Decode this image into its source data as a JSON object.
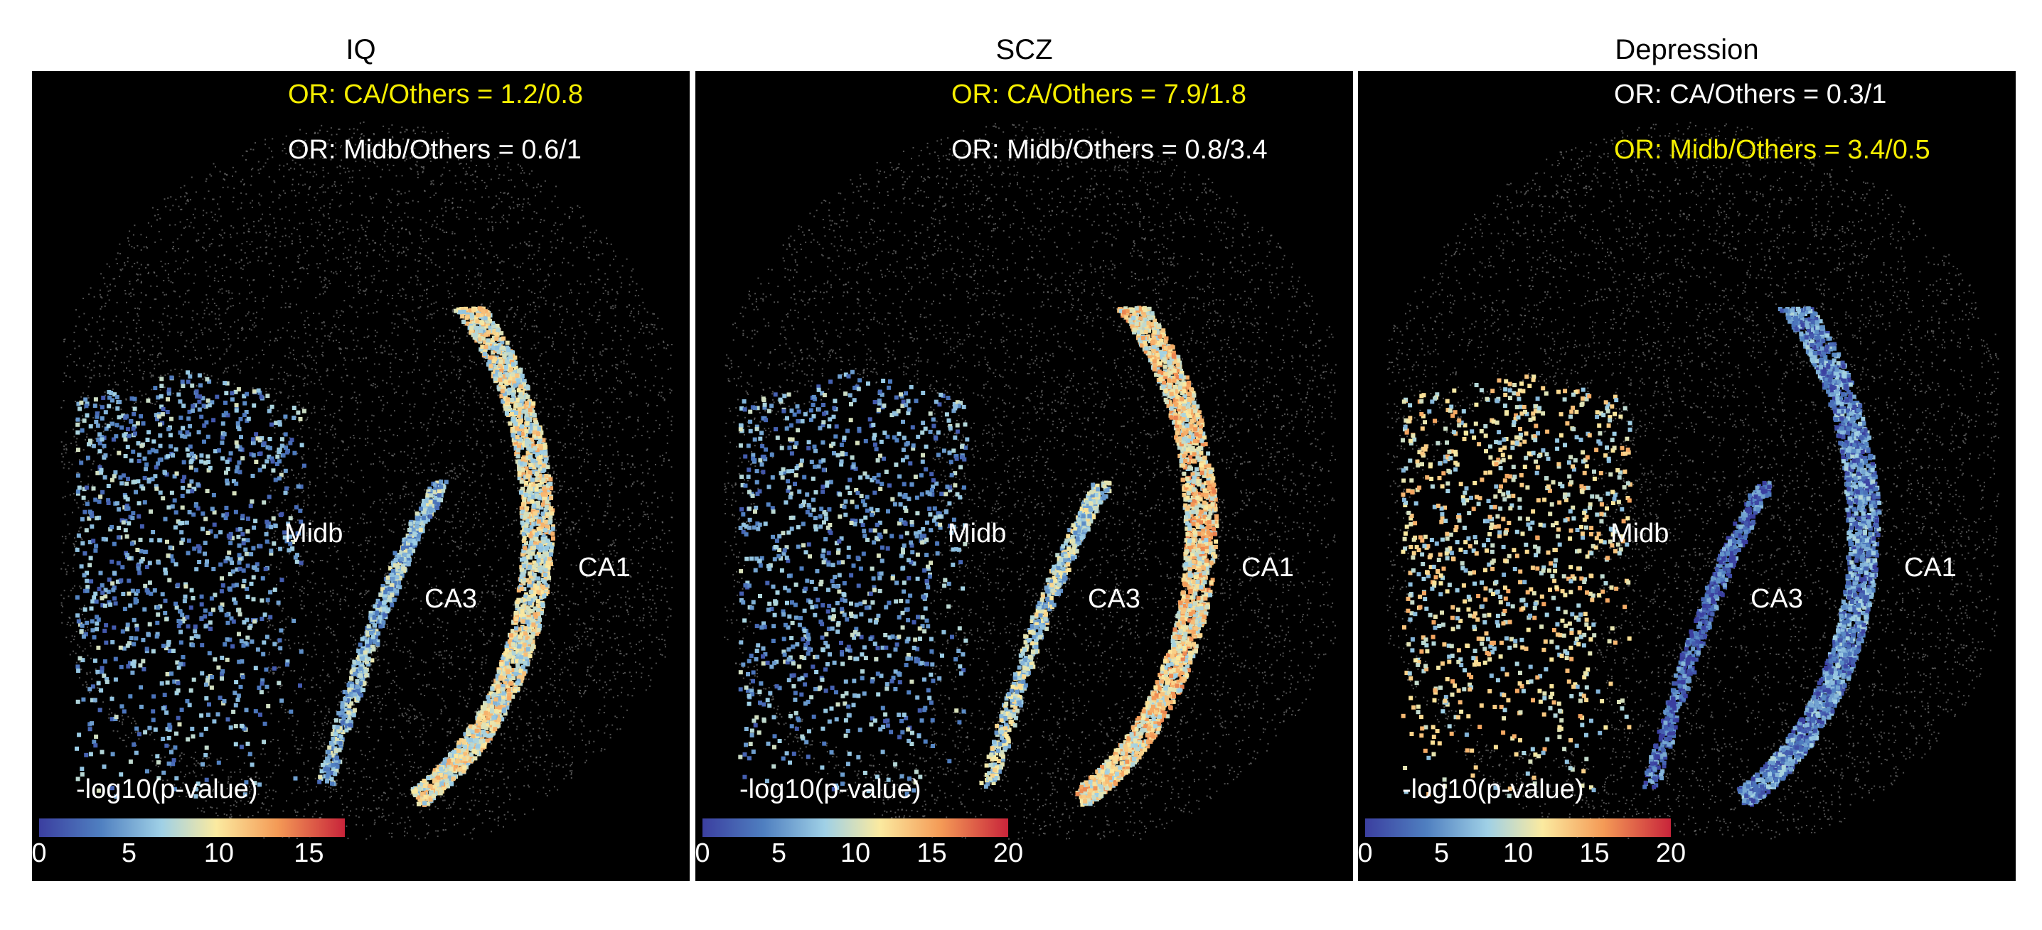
{
  "color_scale": [
    "#3b3fa0",
    "#4f7fc0",
    "#9fd0e6",
    "#fbeaa0",
    "#f49a56",
    "#c8243a"
  ],
  "background_dots_color": "#6e6e6e",
  "highlight_text_color": "#f5ee00",
  "normal_text_color": "#ffffff",
  "panels": [
    {
      "title": "IQ",
      "or_ca": {
        "text": "OR: CA/Others = 1.2/0.8",
        "highlight": true
      },
      "or_midb": {
        "text": "OR: Midb/Others = 0.6/1",
        "highlight": false
      },
      "labels": {
        "midb": "Midb",
        "ca3": "CA3",
        "ca1": "CA1"
      },
      "colorbar": {
        "title": "-log10(p-value)",
        "ticks": [
          "0",
          "5",
          "10",
          "15"
        ],
        "max": 17
      },
      "ca_level": 0.55,
      "midb_level": 0.3,
      "ca3_level": 0.35
    },
    {
      "title": "SCZ",
      "or_ca": {
        "text": "OR: CA/Others = 7.9/1.8",
        "highlight": true
      },
      "or_midb": {
        "text": "OR: Midb/Others = 0.8/3.4",
        "highlight": false
      },
      "labels": {
        "midb": "Midb",
        "ca3": "CA3",
        "ca1": "CA1"
      },
      "colorbar": {
        "title": "-log10(p-value)",
        "ticks": [
          "0",
          "5",
          "10",
          "15",
          "20"
        ],
        "max": 20
      },
      "ca_level": 0.62,
      "midb_level": 0.3,
      "ca3_level": 0.45
    },
    {
      "title": "Depression",
      "or_ca": {
        "text": "OR: CA/Others = 0.3/1",
        "highlight": false
      },
      "or_midb": {
        "text": "OR: Midb/Others = 3.4/0.5",
        "highlight": true
      },
      "labels": {
        "midb": "Midb",
        "ca3": "CA3",
        "ca1": "CA1"
      },
      "colorbar": {
        "title": "-log10(p-value)",
        "ticks": [
          "0",
          "5",
          "10",
          "15",
          "20"
        ],
        "max": 20
      },
      "ca_level": 0.22,
      "midb_level": 0.55,
      "ca3_level": 0.12
    }
  ]
}
